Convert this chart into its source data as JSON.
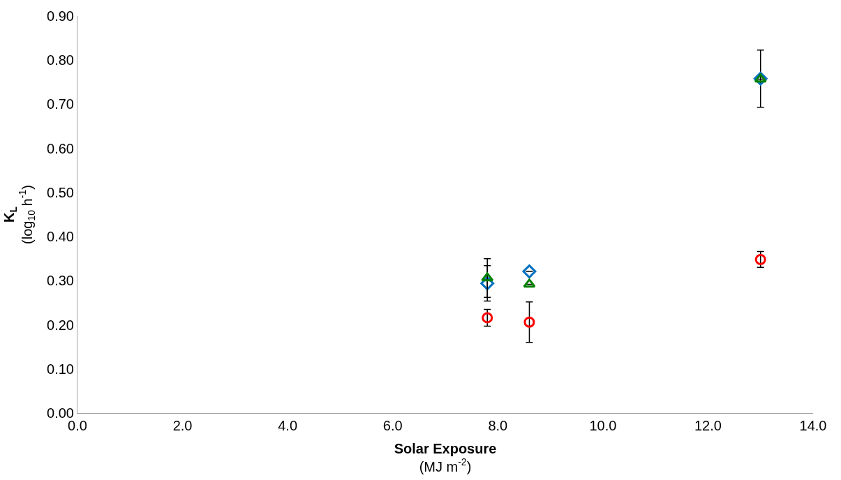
{
  "chart_data": {
    "type": "scatter",
    "xlabel": "Solar Exposure\n(MJ m$^{-2}$)",
    "ylabel": "K$_{L}$\n(log$_{10}$ h$^{-1}$)",
    "xlim": [
      0,
      14
    ],
    "ylim": [
      0,
      0.9
    ],
    "xticks": [
      {
        "value": 0,
        "label": "0.0"
      },
      {
        "value": 2,
        "label": "2.0"
      },
      {
        "value": 4,
        "label": "4.0"
      },
      {
        "value": 6,
        "label": "6.0"
      },
      {
        "value": 8,
        "label": "8.0"
      },
      {
        "value": 10,
        "label": "10.0"
      },
      {
        "value": 12,
        "label": "12.0"
      },
      {
        "value": 14,
        "label": "14.0"
      }
    ],
    "yticks": [
      {
        "value": 0,
        "label": "0.00"
      },
      {
        "value": 0.1,
        "label": "0.10"
      },
      {
        "value": 0.2,
        "label": "0.20"
      },
      {
        "value": 0.3,
        "label": "0.30"
      },
      {
        "value": 0.4,
        "label": "0.40"
      },
      {
        "value": 0.5,
        "label": "0.50"
      },
      {
        "value": 0.6,
        "label": "0.60"
      },
      {
        "value": 0.7,
        "label": "0.70"
      },
      {
        "value": 0.8,
        "label": "0.80"
      },
      {
        "value": 0.9,
        "label": "0.90"
      }
    ],
    "x": [
      7.8,
      8.6,
      13.0
    ],
    "series": [
      {
        "color": "#0070c0",
        "marker": "diamond",
        "values": [
          0.294,
          0.321,
          0.758
        ],
        "errors": [
          0.04,
          null,
          0.065
        ]
      },
      {
        "color": "#008000",
        "marker": "triangle",
        "values": [
          0.306,
          0.292,
          0.757
        ],
        "errors": [
          0.044,
          null,
          null
        ]
      },
      {
        "color": "#ff0000",
        "marker": "circle",
        "values": [
          0.216,
          0.206,
          0.348
        ],
        "errors": [
          0.019,
          0.046,
          0.018
        ]
      }
    ]
  }
}
